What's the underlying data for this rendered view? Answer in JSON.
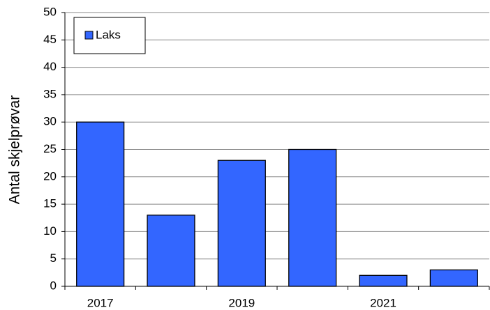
{
  "chart_data": {
    "type": "bar",
    "y_label": "Antal skjelprøvar",
    "categories": [
      "2017",
      null,
      "2019",
      null,
      "2021",
      null
    ],
    "series": [
      {
        "name": "Laks",
        "color": "#3366ff",
        "values": [
          30,
          13,
          23,
          25,
          2,
          3
        ]
      }
    ],
    "ylim": [
      0,
      50
    ],
    "yticks": [
      0,
      5,
      10,
      15,
      20,
      25,
      30,
      35,
      40,
      45,
      50
    ],
    "grid": true,
    "legend": "top-left"
  }
}
